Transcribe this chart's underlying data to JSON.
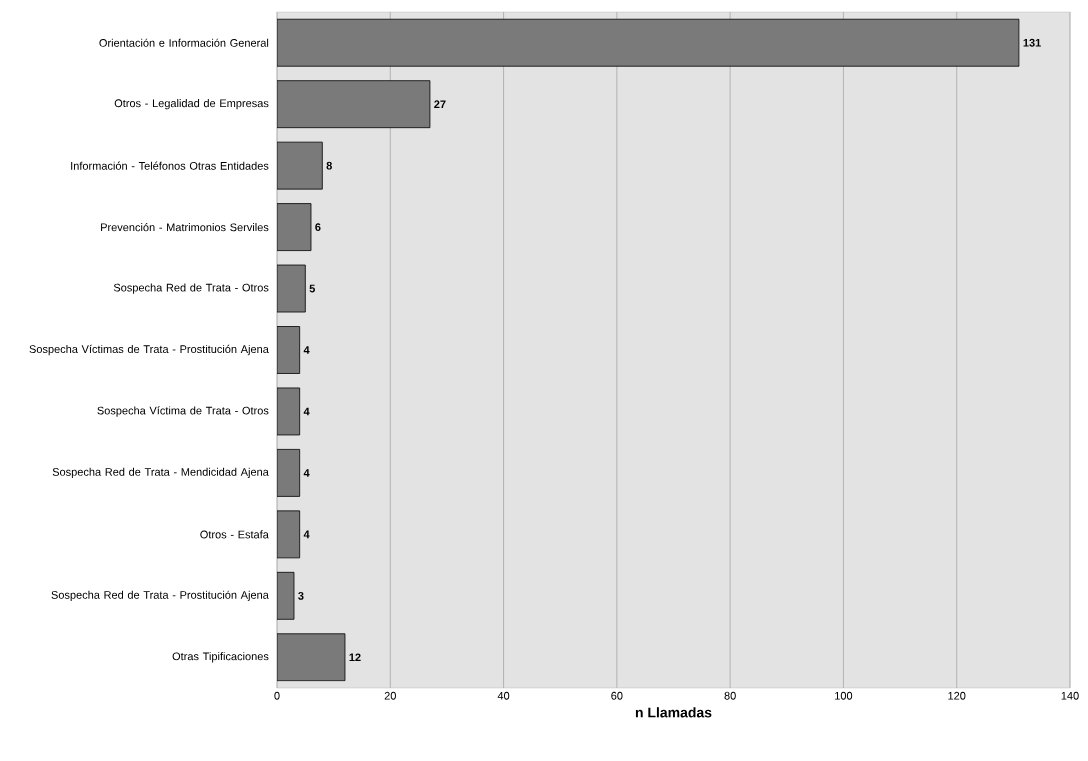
{
  "chart_data": {
    "type": "bar",
    "orientation": "horizontal",
    "xlabel": "n Llamadas",
    "categories": [
      "Orientación e Información General",
      "Otros - Legalidad de Empresas",
      "Información - Teléfonos Otras Entidades",
      "Prevención - Matrimonios Serviles",
      "Sospecha Red de Trata - Otros",
      "Sospecha Víctimas de Trata - Prostitución Ajena",
      "Sospecha Víctima de Trata - Otros",
      "Sospecha Red de Trata - Mendicidad Ajena",
      "Otros - Estafa",
      "Sospecha  Red de Trata - Prostitución Ajena",
      "Otras Tipificaciones"
    ],
    "values": [
      131,
      27,
      8,
      6,
      5,
      4,
      4,
      4,
      4,
      3,
      12
    ],
    "color": "#7a7a7a",
    "xlim": [
      0,
      140
    ],
    "xticks": [
      0,
      20,
      40,
      60,
      80,
      100,
      120,
      140
    ],
    "grid": "x",
    "data_labels": true
  }
}
